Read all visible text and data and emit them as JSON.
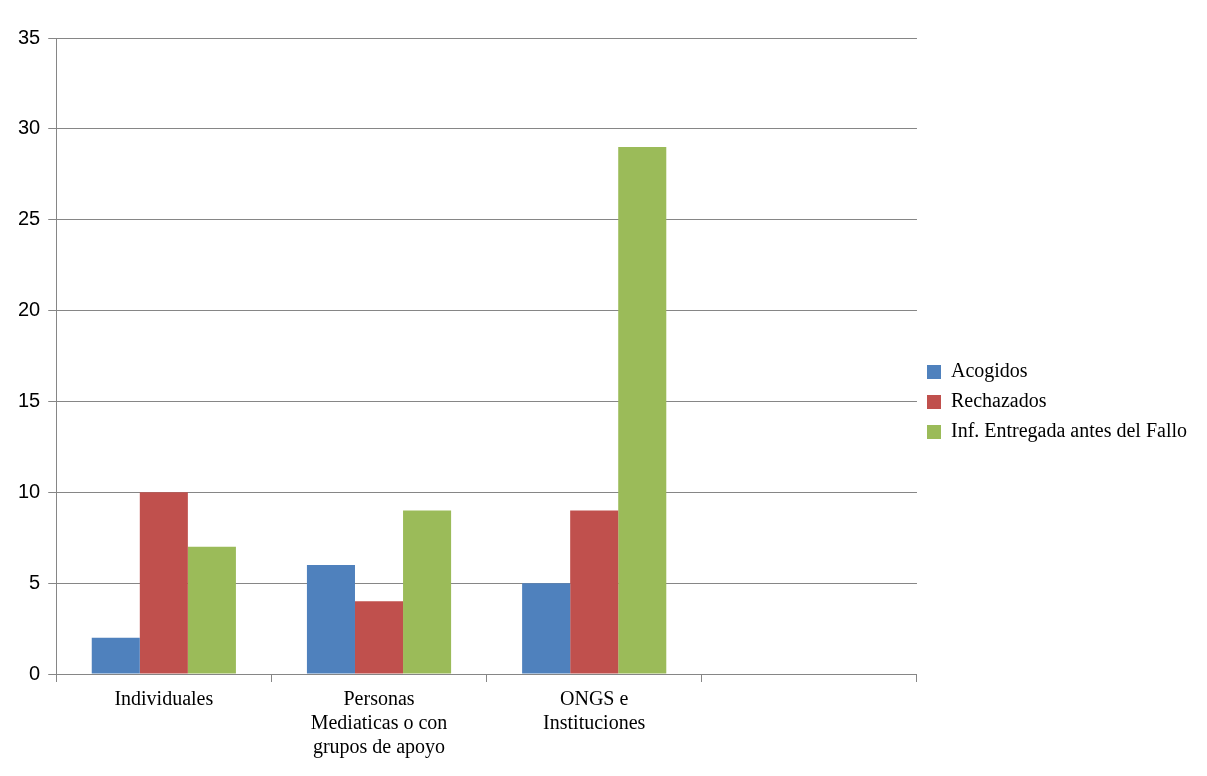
{
  "chart_data": {
    "type": "bar",
    "categories": [
      "Individuales",
      "Personas Mediaticas o con grupos de apoyo",
      "ONGS e Instituciones",
      null
    ],
    "series": [
      {
        "name": "Acogidos",
        "color": "#4f81bd",
        "values": [
          2,
          6,
          5,
          null
        ]
      },
      {
        "name": "Rechazados",
        "color": "#c0504d",
        "values": [
          10,
          4,
          9,
          null
        ]
      },
      {
        "name": "Inf. Entregada antes del Fallo",
        "color": "#9bbb59",
        "values": [
          7,
          9,
          29,
          null
        ]
      }
    ],
    "ylim": [
      0,
      35
    ],
    "yticks": [
      0,
      5,
      10,
      15,
      20,
      25,
      30,
      35
    ],
    "grid": "y",
    "legend": "right"
  }
}
